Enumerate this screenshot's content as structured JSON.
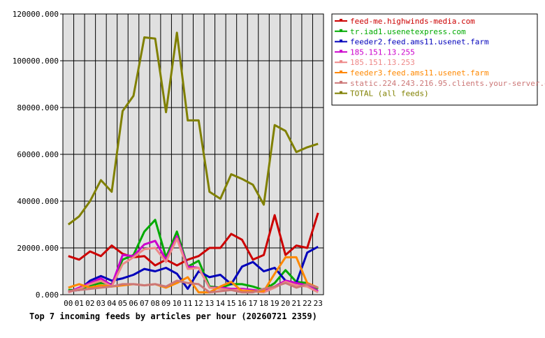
{
  "chart_data": {
    "type": "line",
    "title": "Top 7 incoming feeds by articles per hour (20260721 2359)",
    "x": [
      "00",
      "01",
      "02",
      "03",
      "04",
      "05",
      "06",
      "07",
      "08",
      "09",
      "10",
      "11",
      "12",
      "13",
      "14",
      "15",
      "16",
      "17",
      "18",
      "19",
      "20",
      "21",
      "22",
      "23"
    ],
    "ylim": [
      0,
      120000
    ],
    "yticks": [
      "0.000",
      "20000.000",
      "40000.000",
      "60000.000",
      "80000.000",
      "100000.000",
      "120000.000"
    ],
    "ytick_values": [
      0,
      20000,
      40000,
      60000,
      80000,
      100000,
      120000
    ],
    "grid": true,
    "legend_position": "right",
    "series": [
      {
        "name": "feed-me.highwinds-media.com",
        "color": "#cc0000",
        "values": [
          16500,
          15000,
          18500,
          16500,
          21000,
          17500,
          16000,
          16500,
          12500,
          15000,
          12500,
          15000,
          16500,
          20000,
          20000,
          26000,
          23500,
          15000,
          17000,
          34000,
          17000,
          21000,
          20000,
          35000
        ]
      },
      {
        "name": "tr.iad1.usenetexpress.com",
        "color": "#00aa00",
        "values": [
          2000,
          2000,
          4000,
          5000,
          4500,
          15000,
          17000,
          27000,
          32000,
          16000,
          27000,
          12000,
          14500,
          3500,
          3000,
          4500,
          4500,
          3500,
          2000,
          5000,
          10500,
          5500,
          5000,
          2500
        ]
      },
      {
        "name": "feeder2.feed.ams11.usenet.farm",
        "color": "#0000bb",
        "values": [
          1500,
          2000,
          6000,
          8000,
          6000,
          7000,
          8500,
          11000,
          10000,
          11500,
          9000,
          2500,
          10000,
          7500,
          8500,
          4500,
          12000,
          14000,
          10000,
          11500,
          6000,
          5000,
          18000,
          20500
        ]
      },
      {
        "name": "185.151.13.255",
        "color": "#cc00cc",
        "values": [
          1000,
          3000,
          5000,
          7000,
          4000,
          17000,
          16500,
          21500,
          23000,
          15000,
          25000,
          12000,
          11500,
          3000,
          3000,
          2500,
          2500,
          2000,
          1500,
          3500,
          6000,
          5000,
          4000,
          1500
        ]
      },
      {
        "name": "185.151.13.253",
        "color": "#ee8888",
        "values": [
          1000,
          2500,
          4500,
          6000,
          3500,
          13000,
          16000,
          19500,
          20000,
          14000,
          24000,
          11000,
          11500,
          3000,
          2500,
          2000,
          2000,
          1500,
          1000,
          3000,
          5500,
          4000,
          3500,
          1000
        ]
      },
      {
        "name": "feeder3.feed.ams11.usenet.farm",
        "color": "#ff8800",
        "values": [
          3000,
          4500,
          3000,
          4000,
          3500,
          4000,
          4500,
          4000,
          4500,
          3000,
          5000,
          7500,
          1000,
          1000,
          3500,
          5500,
          1500,
          1500,
          1500,
          9000,
          16000,
          16000,
          5000,
          3000
        ]
      },
      {
        "name": "static.224.243.216.95.clients.your-server.de",
        "color": "#cc7777",
        "values": [
          1500,
          2000,
          2500,
          3000,
          3500,
          4500,
          4500,
          4000,
          4500,
          3500,
          6000,
          5000,
          4500,
          1000,
          1500,
          2000,
          1000,
          1000,
          2500,
          3500,
          5000,
          3000,
          4500,
          3000
        ]
      },
      {
        "name": "TOTAL (all feeds)",
        "color": "#808000",
        "values": [
          30000,
          33500,
          40000,
          49000,
          44000,
          78500,
          85000,
          110000,
          109500,
          78000,
          112000,
          74500,
          74500,
          44000,
          41000,
          51500,
          49500,
          47000,
          38500,
          72500,
          70000,
          61000,
          63000,
          64500
        ]
      }
    ]
  }
}
